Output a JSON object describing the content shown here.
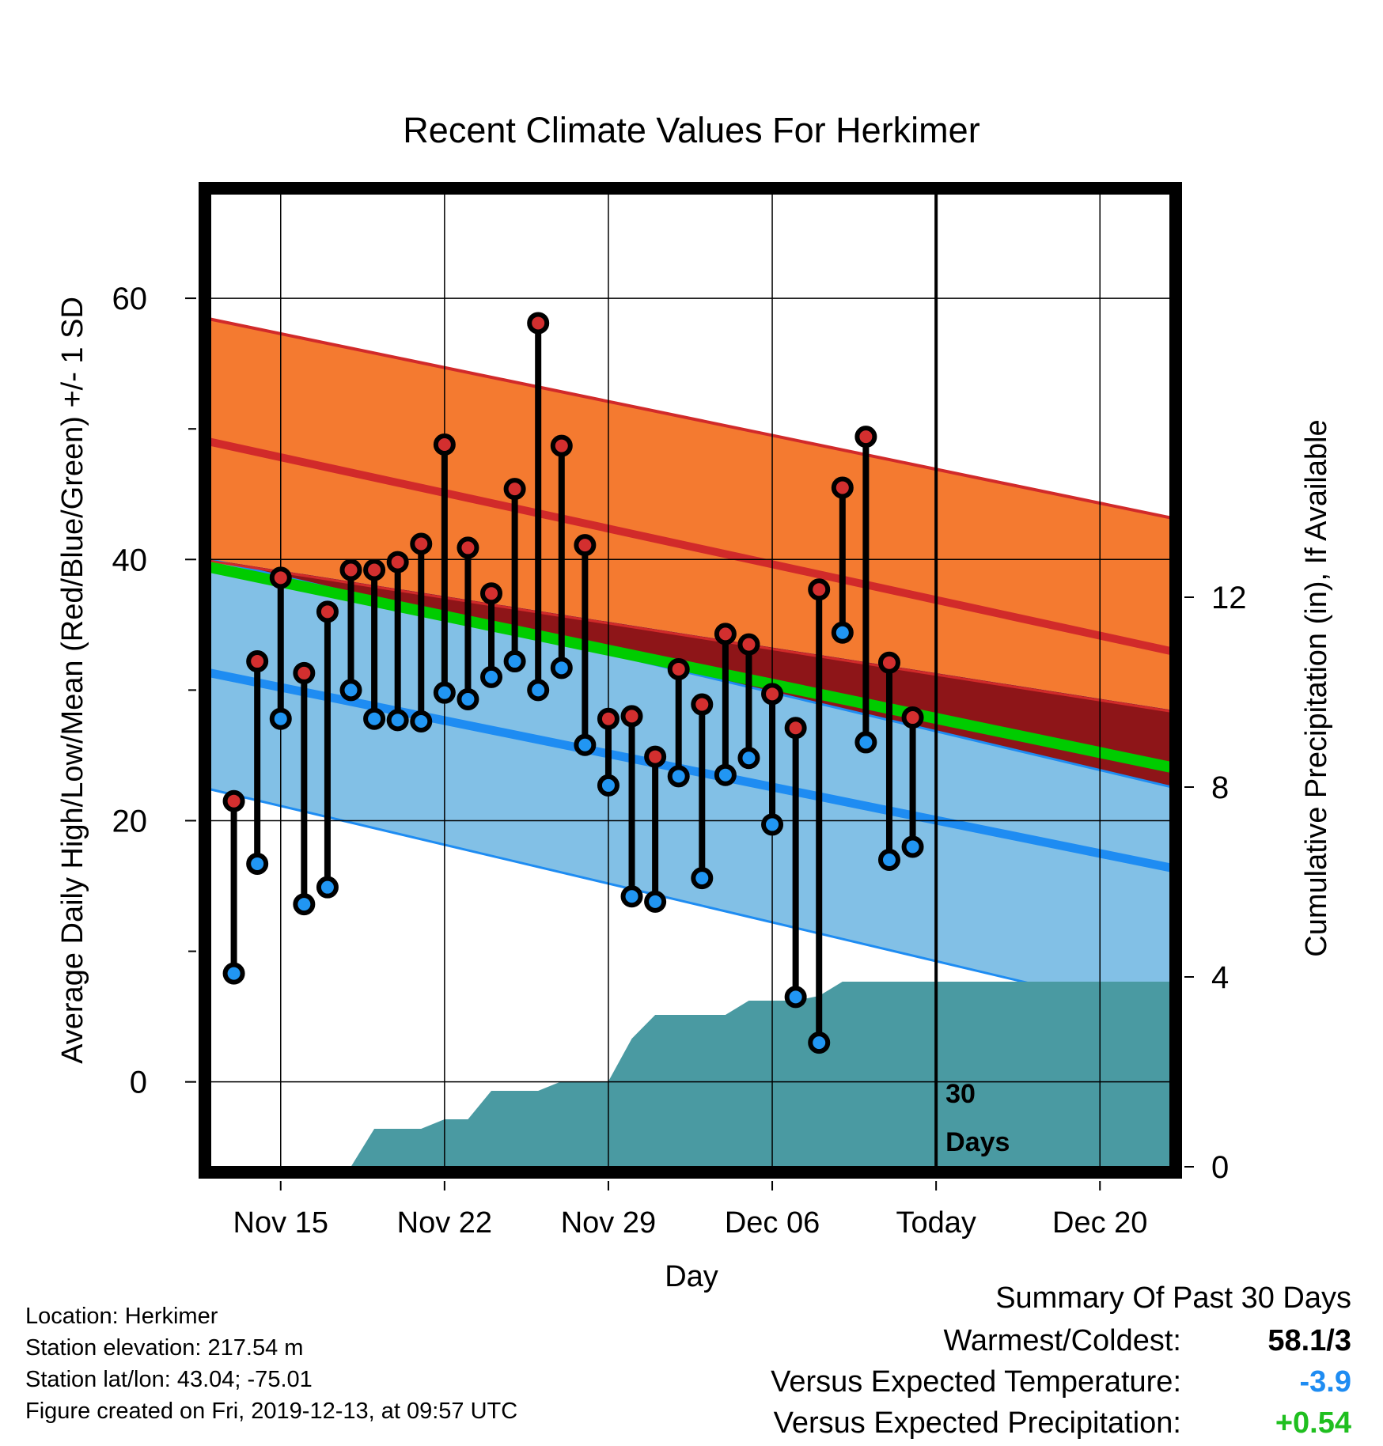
{
  "chart_data": {
    "type": "line",
    "title": "Recent Climate Values For Herkimer",
    "xlabel": "Day",
    "ylabel": "Average Daily High/Low/Mean (Red/Blue/Green) +/- 1 SD",
    "y2label": "Cumulative Precipitation (in), If Available",
    "x_tick_labels": [
      "Nov 15",
      "Nov 22",
      "Nov 29",
      "Dec 06",
      "Today",
      "Dec 20"
    ],
    "x_tick_days": [
      3,
      10,
      17,
      24,
      31,
      38
    ],
    "xlim": [
      0,
      41
    ],
    "ylim": [
      -6.5,
      68
    ],
    "y_ticks": [
      0,
      20,
      40,
      60
    ],
    "y2lim": [
      0,
      20.5
    ],
    "y2_ticks": [
      0,
      4,
      8,
      12
    ],
    "grid": true,
    "today_day": 31,
    "today_label_lines": [
      "30",
      "Days"
    ],
    "x_unit_note": "day 0 = Nov 12",
    "observed": {
      "day": [
        1,
        2,
        3,
        4,
        5,
        6,
        7,
        8,
        9,
        10,
        11,
        12,
        13,
        14,
        15,
        16,
        17,
        18,
        19,
        20,
        21,
        22,
        23,
        24,
        25,
        26,
        27,
        28,
        29,
        30
      ],
      "high": [
        21.5,
        32.2,
        38.6,
        31.3,
        36.0,
        39.2,
        39.2,
        39.8,
        41.2,
        48.8,
        40.9,
        37.4,
        45.4,
        58.1,
        48.7,
        41.1,
        27.8,
        28.0,
        24.9,
        31.6,
        28.9,
        34.3,
        33.5,
        29.7,
        27.1,
        37.7,
        45.5,
        49.4,
        32.1,
        27.9
      ],
      "low": [
        8.3,
        16.7,
        27.8,
        13.6,
        14.9,
        30.0,
        27.8,
        27.7,
        27.6,
        29.8,
        29.3,
        31.0,
        32.2,
        30.0,
        31.7,
        25.8,
        22.7,
        14.2,
        13.8,
        23.4,
        15.6,
        23.5,
        24.8,
        19.7,
        6.5,
        3.0,
        34.4,
        26.0,
        17.0,
        18.0
      ]
    },
    "normals": {
      "day": [
        0,
        41
      ],
      "high_mean": [
        49.0,
        33.0
      ],
      "high_upper": [
        58.4,
        43.2
      ],
      "high_lower": [
        40.0,
        28.5
      ],
      "low_mean": [
        31.3,
        16.4
      ],
      "low_upper": [
        40.0,
        22.6
      ],
      "low_lower": [
        22.4,
        5.0
      ],
      "mean_mean": [
        39.4,
        24.1
      ]
    },
    "precip_cumulative": {
      "day": [
        0,
        6,
        7,
        9,
        10,
        11,
        12,
        13,
        14,
        15,
        16,
        17,
        18,
        19,
        20,
        21,
        22,
        23,
        24,
        25,
        26,
        27,
        28,
        29,
        41
      ],
      "value": [
        0,
        0,
        0.8,
        0.8,
        1.0,
        1.0,
        1.6,
        1.6,
        1.6,
        1.8,
        1.8,
        1.8,
        2.7,
        3.2,
        3.2,
        3.2,
        3.2,
        3.5,
        3.5,
        3.5,
        3.6,
        3.9,
        3.9,
        3.9,
        3.9
      ]
    },
    "colors": {
      "high_band": "#f47a30",
      "high_line": "#d12a2a",
      "low_band": "#82c0e6",
      "low_line": "#1e8cf2",
      "mean_line": "#00cc00",
      "overlap_band": "#8e1518",
      "precip": "#4a9aa2",
      "high_point": "#d32f2f",
      "low_point": "#2196f3"
    }
  },
  "info": {
    "location": "Location: Herkimer",
    "elevation": "Station elevation: 217.54 m",
    "latlon": "Station lat/lon: 43.04; -75.01",
    "created": "Figure created on Fri, 2019-12-13, at 09:57 UTC"
  },
  "summary": {
    "heading": "Summary Of Past 30 Days",
    "warm_cold_label": "Warmest/Coldest:",
    "warm_cold_value": "58.1/3",
    "temp_label": "Versus Expected Temperature:",
    "temp_value": "-3.9",
    "temp_color": "#1e8cf2",
    "precip_label": "Versus Expected Precipitation:",
    "precip_value": "+0.54",
    "precip_color": "#1fbf1f"
  }
}
